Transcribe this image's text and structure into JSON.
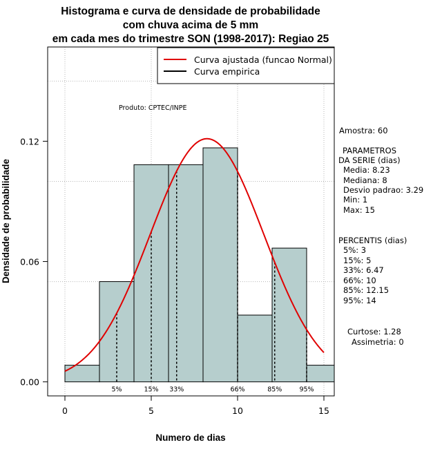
{
  "chart_data": {
    "type": "bar",
    "title_lines": [
      "Histograma e curva de densidade de probabilidade",
      "com chuva acima de 5 mm",
      "em cada mes do trimestre SON (1998-2017): Regiao 25"
    ],
    "xlabel": "Numero de dias",
    "ylabel": "Densidade de probabilidade",
    "xlim": [
      -1,
      15.6
    ],
    "ylim": [
      -0.007,
      0.167
    ],
    "x_ticks": [
      0,
      5,
      10,
      15
    ],
    "y_ticks": [
      0.0,
      0.06,
      0.12
    ],
    "y_tick_labels": [
      "0.00",
      "0.06",
      "0.12"
    ],
    "grid": true,
    "grid_x": [
      0,
      5,
      10,
      15
    ],
    "grid_y": [
      0.05,
      0.1,
      0.15
    ],
    "bins": [
      {
        "start": 0,
        "end": 2,
        "density": 0.0083
      },
      {
        "start": 2,
        "end": 4,
        "density": 0.05
      },
      {
        "start": 4,
        "end": 6,
        "density": 0.1083
      },
      {
        "start": 6,
        "end": 8,
        "density": 0.1083
      },
      {
        "start": 8,
        "end": 10,
        "density": 0.1167
      },
      {
        "start": 10,
        "end": 12,
        "density": 0.0333
      },
      {
        "start": 12,
        "end": 14,
        "density": 0.0667
      },
      {
        "start": 14,
        "end": 16,
        "density": 0.0083
      }
    ],
    "bar_color": "#b6cecd",
    "curve_color": "#e00000",
    "normal_fit": {
      "mean": 8.23,
      "sd": 3.29
    },
    "percentiles": [
      {
        "label": "5%",
        "value": 3
      },
      {
        "label": "15%",
        "value": 5
      },
      {
        "label": "33%",
        "value": 6.47
      },
      {
        "label": "66%",
        "value": 10
      },
      {
        "label": "85%",
        "value": 12.15
      },
      {
        "label": "95%",
        "value": 14
      }
    ],
    "legend": {
      "position": "top-right",
      "entries": [
        {
          "label": "Curva ajustada (funcao Normal)",
          "color": "#e00000"
        },
        {
          "label": "Curva empirica",
          "color": "#000000"
        }
      ]
    },
    "annotation": "Produto: CPTEC/INPE",
    "stats": {
      "sample": "Amostra: 60",
      "params_header": [
        "PARAMETROS",
        "DA SERIE (dias)"
      ],
      "params": [
        "Media: 8.23",
        "Mediana: 8",
        "Desvio padrao: 3.29",
        "Min: 1",
        "Max: 15"
      ],
      "perc_header": "PERCENTIS (dias)",
      "perc": [
        "5%: 3",
        "15%: 5",
        "33%: 6.47",
        "66%: 10",
        "85%: 12.15",
        "95%: 14"
      ],
      "kurtosis": "Curtose: 1.28",
      "skewness": "Assimetria: 0"
    }
  }
}
